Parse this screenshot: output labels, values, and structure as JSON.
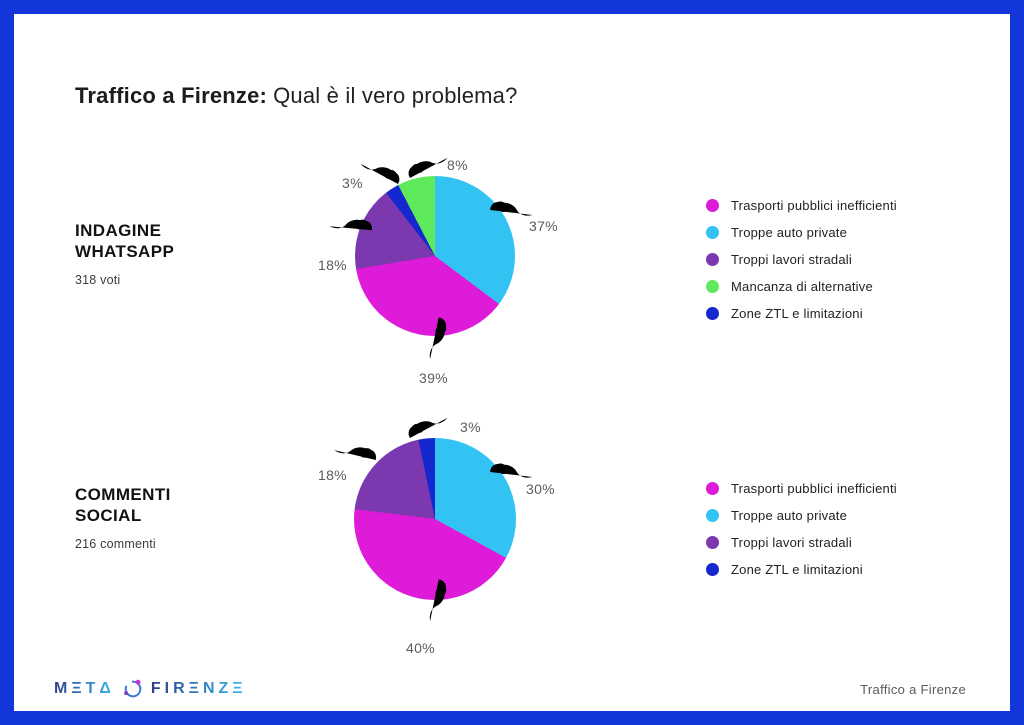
{
  "frame": {
    "border_color": "#1437DB",
    "background": "#FFFFFF"
  },
  "title": {
    "bold": "Traffico a Firenze:",
    "regular": "Qual è il vero problema?"
  },
  "palette": {
    "magenta": "#DE1BD8",
    "cyan": "#33C3F2",
    "purple": "#7C39AF",
    "green": "#5FE95C",
    "blue": "#1528CF"
  },
  "chart_data": [
    {
      "type": "pie",
      "section_heading_lines": [
        "INDAGINE",
        "WHATSAPP"
      ],
      "subtitle": "318 voti",
      "start_angle_deg": 0,
      "direction": "clockwise",
      "slices": [
        {
          "label": "Troppe auto private",
          "value": 37,
          "text": "37%",
          "color": "#33C3F2"
        },
        {
          "label": "Trasporti pubblici inefficienti",
          "value": 39,
          "text": "39%",
          "color": "#DE1BD8"
        },
        {
          "label": "Troppi lavori stradali",
          "value": 18,
          "text": "18%",
          "color": "#7C39AF"
        },
        {
          "label": "Zone ZTL e limitazioni",
          "value": 3,
          "text": "3%",
          "color": "#1528CF"
        },
        {
          "label": "Mancanza di alternative",
          "value": 8,
          "text": "8%",
          "color": "#5FE95C"
        }
      ],
      "legend": [
        "Trasporti pubblici inefficienti",
        "Troppe auto private",
        "Troppi lavori stradali",
        "Mancanza di alternative",
        "Zone ZTL e limitazioni"
      ]
    },
    {
      "type": "pie",
      "section_heading_lines": [
        "COMMENTI",
        "SOCIAL"
      ],
      "subtitle": "216 commenti",
      "start_angle_deg": 0,
      "direction": "clockwise",
      "slices": [
        {
          "label": "Troppe auto private",
          "value": 30,
          "text": "30%",
          "color": "#33C3F2"
        },
        {
          "label": "Trasporti pubblici inefficienti",
          "value": 40,
          "text": "40%",
          "color": "#DE1BD8"
        },
        {
          "label": "Troppi lavori stradali",
          "value": 18,
          "text": "18%",
          "color": "#7C39AF"
        },
        {
          "label": "Zone ZTL e limitazioni",
          "value": 3,
          "text": "3%",
          "color": "#1528CF"
        }
      ],
      "legend": [
        "Trasporti pubblici inefficienti",
        "Troppe auto private",
        "Troppi lavori stradali",
        "Zone ZTL e limitazioni"
      ]
    }
  ],
  "footer": {
    "logo_text_meta": "MΞTΔ",
    "logo_text_firenze": "FIRΞNZΞ",
    "right_text": "Traffico a Firenze"
  }
}
